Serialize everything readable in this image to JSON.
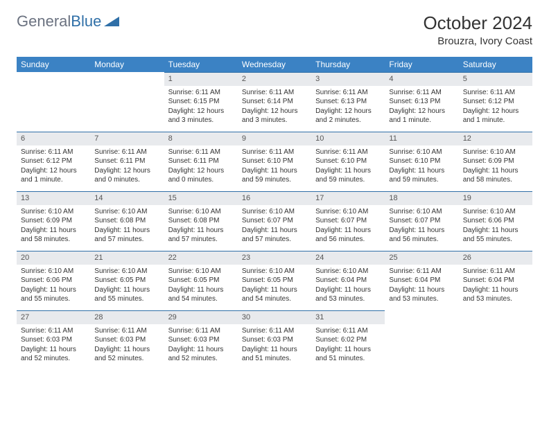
{
  "logo": {
    "text1": "General",
    "text2": "Blue"
  },
  "title": "October 2024",
  "location": "Brouzra, Ivory Coast",
  "weekdays": [
    "Sunday",
    "Monday",
    "Tuesday",
    "Wednesday",
    "Thursday",
    "Friday",
    "Saturday"
  ],
  "colors": {
    "header_bg": "#3b82c4",
    "header_text": "#ffffff",
    "daynum_bg": "#e8eaed",
    "border": "#2f6fa7",
    "logo_gray": "#6b7280",
    "logo_blue": "#2f6fa7"
  },
  "weeks": [
    [
      {
        "num": "",
        "sunrise": "",
        "sunset": "",
        "daylight": ""
      },
      {
        "num": "",
        "sunrise": "",
        "sunset": "",
        "daylight": ""
      },
      {
        "num": "1",
        "sunrise": "Sunrise: 6:11 AM",
        "sunset": "Sunset: 6:15 PM",
        "daylight": "Daylight: 12 hours and 3 minutes."
      },
      {
        "num": "2",
        "sunrise": "Sunrise: 6:11 AM",
        "sunset": "Sunset: 6:14 PM",
        "daylight": "Daylight: 12 hours and 3 minutes."
      },
      {
        "num": "3",
        "sunrise": "Sunrise: 6:11 AM",
        "sunset": "Sunset: 6:13 PM",
        "daylight": "Daylight: 12 hours and 2 minutes."
      },
      {
        "num": "4",
        "sunrise": "Sunrise: 6:11 AM",
        "sunset": "Sunset: 6:13 PM",
        "daylight": "Daylight: 12 hours and 1 minute."
      },
      {
        "num": "5",
        "sunrise": "Sunrise: 6:11 AM",
        "sunset": "Sunset: 6:12 PM",
        "daylight": "Daylight: 12 hours and 1 minute."
      }
    ],
    [
      {
        "num": "6",
        "sunrise": "Sunrise: 6:11 AM",
        "sunset": "Sunset: 6:12 PM",
        "daylight": "Daylight: 12 hours and 1 minute."
      },
      {
        "num": "7",
        "sunrise": "Sunrise: 6:11 AM",
        "sunset": "Sunset: 6:11 PM",
        "daylight": "Daylight: 12 hours and 0 minutes."
      },
      {
        "num": "8",
        "sunrise": "Sunrise: 6:11 AM",
        "sunset": "Sunset: 6:11 PM",
        "daylight": "Daylight: 12 hours and 0 minutes."
      },
      {
        "num": "9",
        "sunrise": "Sunrise: 6:11 AM",
        "sunset": "Sunset: 6:10 PM",
        "daylight": "Daylight: 11 hours and 59 minutes."
      },
      {
        "num": "10",
        "sunrise": "Sunrise: 6:11 AM",
        "sunset": "Sunset: 6:10 PM",
        "daylight": "Daylight: 11 hours and 59 minutes."
      },
      {
        "num": "11",
        "sunrise": "Sunrise: 6:10 AM",
        "sunset": "Sunset: 6:10 PM",
        "daylight": "Daylight: 11 hours and 59 minutes."
      },
      {
        "num": "12",
        "sunrise": "Sunrise: 6:10 AM",
        "sunset": "Sunset: 6:09 PM",
        "daylight": "Daylight: 11 hours and 58 minutes."
      }
    ],
    [
      {
        "num": "13",
        "sunrise": "Sunrise: 6:10 AM",
        "sunset": "Sunset: 6:09 PM",
        "daylight": "Daylight: 11 hours and 58 minutes."
      },
      {
        "num": "14",
        "sunrise": "Sunrise: 6:10 AM",
        "sunset": "Sunset: 6:08 PM",
        "daylight": "Daylight: 11 hours and 57 minutes."
      },
      {
        "num": "15",
        "sunrise": "Sunrise: 6:10 AM",
        "sunset": "Sunset: 6:08 PM",
        "daylight": "Daylight: 11 hours and 57 minutes."
      },
      {
        "num": "16",
        "sunrise": "Sunrise: 6:10 AM",
        "sunset": "Sunset: 6:07 PM",
        "daylight": "Daylight: 11 hours and 57 minutes."
      },
      {
        "num": "17",
        "sunrise": "Sunrise: 6:10 AM",
        "sunset": "Sunset: 6:07 PM",
        "daylight": "Daylight: 11 hours and 56 minutes."
      },
      {
        "num": "18",
        "sunrise": "Sunrise: 6:10 AM",
        "sunset": "Sunset: 6:07 PM",
        "daylight": "Daylight: 11 hours and 56 minutes."
      },
      {
        "num": "19",
        "sunrise": "Sunrise: 6:10 AM",
        "sunset": "Sunset: 6:06 PM",
        "daylight": "Daylight: 11 hours and 55 minutes."
      }
    ],
    [
      {
        "num": "20",
        "sunrise": "Sunrise: 6:10 AM",
        "sunset": "Sunset: 6:06 PM",
        "daylight": "Daylight: 11 hours and 55 minutes."
      },
      {
        "num": "21",
        "sunrise": "Sunrise: 6:10 AM",
        "sunset": "Sunset: 6:05 PM",
        "daylight": "Daylight: 11 hours and 55 minutes."
      },
      {
        "num": "22",
        "sunrise": "Sunrise: 6:10 AM",
        "sunset": "Sunset: 6:05 PM",
        "daylight": "Daylight: 11 hours and 54 minutes."
      },
      {
        "num": "23",
        "sunrise": "Sunrise: 6:10 AM",
        "sunset": "Sunset: 6:05 PM",
        "daylight": "Daylight: 11 hours and 54 minutes."
      },
      {
        "num": "24",
        "sunrise": "Sunrise: 6:10 AM",
        "sunset": "Sunset: 6:04 PM",
        "daylight": "Daylight: 11 hours and 53 minutes."
      },
      {
        "num": "25",
        "sunrise": "Sunrise: 6:11 AM",
        "sunset": "Sunset: 6:04 PM",
        "daylight": "Daylight: 11 hours and 53 minutes."
      },
      {
        "num": "26",
        "sunrise": "Sunrise: 6:11 AM",
        "sunset": "Sunset: 6:04 PM",
        "daylight": "Daylight: 11 hours and 53 minutes."
      }
    ],
    [
      {
        "num": "27",
        "sunrise": "Sunrise: 6:11 AM",
        "sunset": "Sunset: 6:03 PM",
        "daylight": "Daylight: 11 hours and 52 minutes."
      },
      {
        "num": "28",
        "sunrise": "Sunrise: 6:11 AM",
        "sunset": "Sunset: 6:03 PM",
        "daylight": "Daylight: 11 hours and 52 minutes."
      },
      {
        "num": "29",
        "sunrise": "Sunrise: 6:11 AM",
        "sunset": "Sunset: 6:03 PM",
        "daylight": "Daylight: 11 hours and 52 minutes."
      },
      {
        "num": "30",
        "sunrise": "Sunrise: 6:11 AM",
        "sunset": "Sunset: 6:03 PM",
        "daylight": "Daylight: 11 hours and 51 minutes."
      },
      {
        "num": "31",
        "sunrise": "Sunrise: 6:11 AM",
        "sunset": "Sunset: 6:02 PM",
        "daylight": "Daylight: 11 hours and 51 minutes."
      },
      {
        "num": "",
        "sunrise": "",
        "sunset": "",
        "daylight": ""
      },
      {
        "num": "",
        "sunrise": "",
        "sunset": "",
        "daylight": ""
      }
    ]
  ]
}
